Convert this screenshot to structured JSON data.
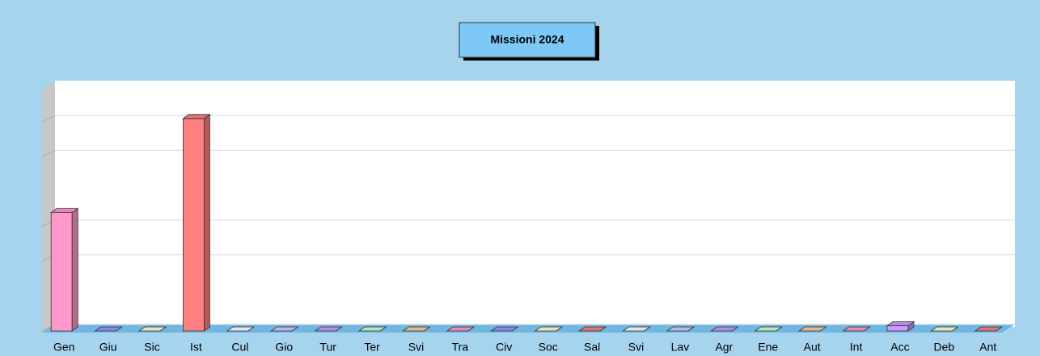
{
  "chart_data": {
    "type": "bar3d",
    "title": "Missioni 2024",
    "categories": [
      "Gen",
      "Giu",
      "Sic",
      "Ist",
      "Cul",
      "Gio",
      "Tur",
      "Ter",
      "Svi",
      "Tra",
      "Civ",
      "Soc",
      "Sal",
      "Svi",
      "Lav",
      "Agr",
      "Ene",
      "Aut",
      "Int",
      "Acc",
      "Deb",
      "Ant"
    ],
    "values": [
      3.4,
      0,
      0,
      6.1,
      0,
      0,
      0,
      0,
      0,
      0,
      0,
      0,
      0,
      0,
      0,
      0,
      0,
      0,
      0,
      0.15,
      0,
      0
    ],
    "colors": [
      "#ff99cc",
      "#9999ff",
      "#ffffcc",
      "#ff8080",
      "#ffffff",
      "#ccccff",
      "#cc99ff",
      "#ccffcc",
      "#ffcc99",
      "#ff99cc",
      "#9999ff",
      "#ffffcc",
      "#ff8080",
      "#ffffff",
      "#ccccff",
      "#cc99ff",
      "#ccffcc",
      "#ffcc99",
      "#ff99cc",
      "#cc99ff",
      "#ffffcc",
      "#ff8080"
    ],
    "ylim": [
      0,
      7
    ],
    "yticks": [
      0,
      2,
      3,
      5,
      6
    ],
    "grid": true
  }
}
